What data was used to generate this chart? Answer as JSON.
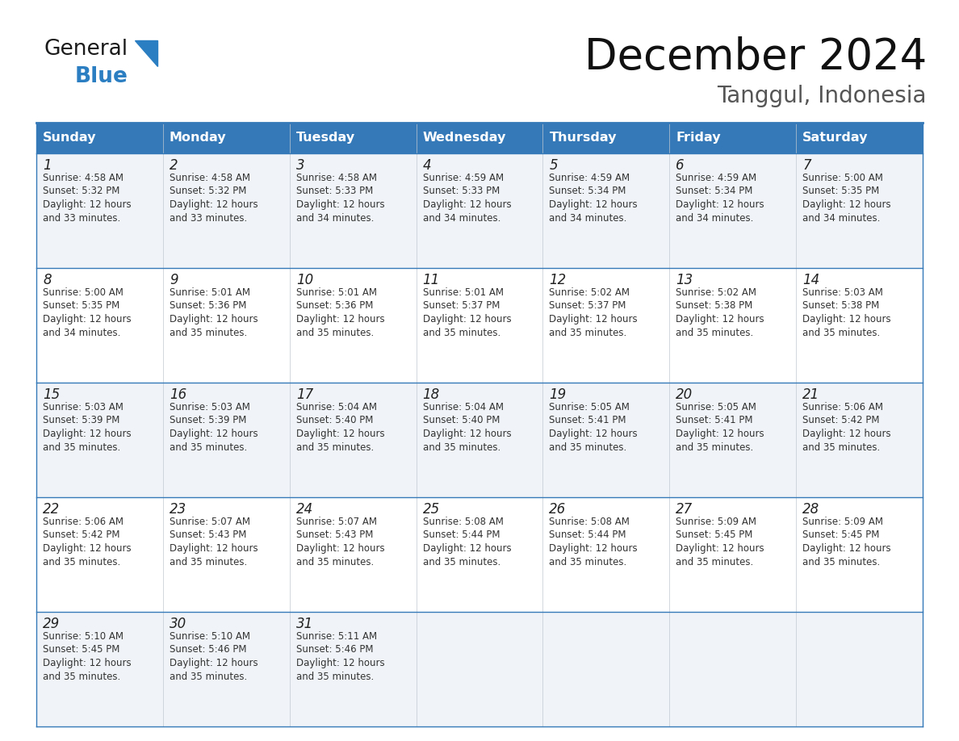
{
  "title": "December 2024",
  "subtitle": "Tanggul, Indonesia",
  "header_bg_color": "#3579b8",
  "header_text_color": "#ffffff",
  "row_bg_colors": [
    "#f0f4f8",
    "#ffffff"
  ],
  "cell_text_color": "#333333",
  "grid_line_color": "#3579b8",
  "days_of_week": [
    "Sunday",
    "Monday",
    "Tuesday",
    "Wednesday",
    "Thursday",
    "Friday",
    "Saturday"
  ],
  "weeks": [
    [
      {
        "day": 1,
        "sunrise": "4:58 AM",
        "sunset": "5:32 PM",
        "daylight_mins": "33"
      },
      {
        "day": 2,
        "sunrise": "4:58 AM",
        "sunset": "5:32 PM",
        "daylight_mins": "33"
      },
      {
        "day": 3,
        "sunrise": "4:58 AM",
        "sunset": "5:33 PM",
        "daylight_mins": "34"
      },
      {
        "day": 4,
        "sunrise": "4:59 AM",
        "sunset": "5:33 PM",
        "daylight_mins": "34"
      },
      {
        "day": 5,
        "sunrise": "4:59 AM",
        "sunset": "5:34 PM",
        "daylight_mins": "34"
      },
      {
        "day": 6,
        "sunrise": "4:59 AM",
        "sunset": "5:34 PM",
        "daylight_mins": "34"
      },
      {
        "day": 7,
        "sunrise": "5:00 AM",
        "sunset": "5:35 PM",
        "daylight_mins": "34"
      }
    ],
    [
      {
        "day": 8,
        "sunrise": "5:00 AM",
        "sunset": "5:35 PM",
        "daylight_mins": "34"
      },
      {
        "day": 9,
        "sunrise": "5:01 AM",
        "sunset": "5:36 PM",
        "daylight_mins": "35"
      },
      {
        "day": 10,
        "sunrise": "5:01 AM",
        "sunset": "5:36 PM",
        "daylight_mins": "35"
      },
      {
        "day": 11,
        "sunrise": "5:01 AM",
        "sunset": "5:37 PM",
        "daylight_mins": "35"
      },
      {
        "day": 12,
        "sunrise": "5:02 AM",
        "sunset": "5:37 PM",
        "daylight_mins": "35"
      },
      {
        "day": 13,
        "sunrise": "5:02 AM",
        "sunset": "5:38 PM",
        "daylight_mins": "35"
      },
      {
        "day": 14,
        "sunrise": "5:03 AM",
        "sunset": "5:38 PM",
        "daylight_mins": "35"
      }
    ],
    [
      {
        "day": 15,
        "sunrise": "5:03 AM",
        "sunset": "5:39 PM",
        "daylight_mins": "35"
      },
      {
        "day": 16,
        "sunrise": "5:03 AM",
        "sunset": "5:39 PM",
        "daylight_mins": "35"
      },
      {
        "day": 17,
        "sunrise": "5:04 AM",
        "sunset": "5:40 PM",
        "daylight_mins": "35"
      },
      {
        "day": 18,
        "sunrise": "5:04 AM",
        "sunset": "5:40 PM",
        "daylight_mins": "35"
      },
      {
        "day": 19,
        "sunrise": "5:05 AM",
        "sunset": "5:41 PM",
        "daylight_mins": "35"
      },
      {
        "day": 20,
        "sunrise": "5:05 AM",
        "sunset": "5:41 PM",
        "daylight_mins": "35"
      },
      {
        "day": 21,
        "sunrise": "5:06 AM",
        "sunset": "5:42 PM",
        "daylight_mins": "35"
      }
    ],
    [
      {
        "day": 22,
        "sunrise": "5:06 AM",
        "sunset": "5:42 PM",
        "daylight_mins": "35"
      },
      {
        "day": 23,
        "sunrise": "5:07 AM",
        "sunset": "5:43 PM",
        "daylight_mins": "35"
      },
      {
        "day": 24,
        "sunrise": "5:07 AM",
        "sunset": "5:43 PM",
        "daylight_mins": "35"
      },
      {
        "day": 25,
        "sunrise": "5:08 AM",
        "sunset": "5:44 PM",
        "daylight_mins": "35"
      },
      {
        "day": 26,
        "sunrise": "5:08 AM",
        "sunset": "5:44 PM",
        "daylight_mins": "35"
      },
      {
        "day": 27,
        "sunrise": "5:09 AM",
        "sunset": "5:45 PM",
        "daylight_mins": "35"
      },
      {
        "day": 28,
        "sunrise": "5:09 AM",
        "sunset": "5:45 PM",
        "daylight_mins": "35"
      }
    ],
    [
      {
        "day": 29,
        "sunrise": "5:10 AM",
        "sunset": "5:45 PM",
        "daylight_mins": "35"
      },
      {
        "day": 30,
        "sunrise": "5:10 AM",
        "sunset": "5:46 PM",
        "daylight_mins": "35"
      },
      {
        "day": 31,
        "sunrise": "5:11 AM",
        "sunset": "5:46 PM",
        "daylight_mins": "35"
      },
      null,
      null,
      null,
      null
    ]
  ],
  "logo_color_general": "#1a1a1a",
  "logo_color_blue": "#2b7ec1",
  "logo_triangle_color": "#2b7ec1",
  "title_fontsize": 38,
  "subtitle_fontsize": 20,
  "header_fontsize": 11.5,
  "day_num_fontsize": 12,
  "cell_fontsize": 8.5
}
